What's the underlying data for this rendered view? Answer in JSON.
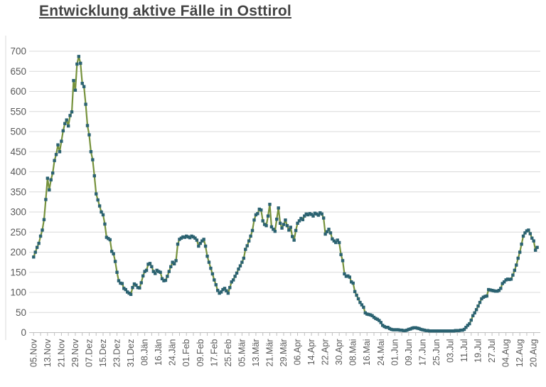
{
  "title": "Entwicklung aktive Fälle in Osttirol",
  "colors": {
    "line": "#76923C",
    "marker": "#2B6271",
    "grid": "#D9D9D9",
    "axis": "#BFBFBF",
    "frame": "#D9D9D9",
    "label": "#595959",
    "title": "#444444"
  },
  "chart_data": {
    "type": "line",
    "title": "Entwicklung aktive Fälle in Osttirol",
    "series_name": "aktive Fälle",
    "xlabel": "",
    "ylabel": "",
    "ylim": [
      0,
      700
    ],
    "y_tick_step": 50,
    "grid": true,
    "legend": false,
    "marker_shape": "square",
    "x_label_every": 8,
    "x_tick_labels": [
      "05.Nov",
      "13.Nov",
      "21.Nov",
      "29.Nov",
      "07.Dez",
      "15.Dez",
      "23.Dez",
      "31.Dez",
      "08.Jän",
      "16.Jän",
      "24.Jän",
      "01.Feb",
      "09.Feb",
      "17.Feb",
      "25.Feb",
      "05.Mär",
      "13.Mär",
      "21.Mär",
      "29.Mär",
      "06.Apr",
      "14.Apr",
      "22.Apr",
      "30.Apr",
      "08.Mai",
      "16.Mai",
      "24.Mai",
      "01.Jun",
      "09.Jun",
      "17.Jun",
      "25.Jun",
      "03.Jul",
      "11.Jul",
      "19.Jul",
      "27.Jul",
      "04.Aug",
      "12.Aug",
      "20.Aug"
    ],
    "values": [
      188,
      200,
      212,
      222,
      240,
      255,
      281,
      331,
      384,
      355,
      380,
      397,
      428,
      443,
      467,
      450,
      476,
      502,
      520,
      529,
      514,
      540,
      549,
      627,
      603,
      668,
      687,
      670,
      620,
      612,
      568,
      515,
      492,
      450,
      430,
      390,
      345,
      330,
      315,
      300,
      293,
      270,
      237,
      234,
      231,
      202,
      196,
      177,
      150,
      129,
      123,
      122,
      110,
      107,
      101,
      98,
      95,
      112,
      121,
      118,
      112,
      111,
      124,
      141,
      152,
      155,
      170,
      172,
      164,
      152,
      147,
      155,
      152,
      150,
      134,
      129,
      130,
      140,
      152,
      164,
      175,
      171,
      179,
      220,
      232,
      235,
      238,
      237,
      240,
      238,
      236,
      240,
      238,
      235,
      230,
      215,
      222,
      228,
      232,
      215,
      190,
      175,
      160,
      146,
      131,
      119,
      105,
      98,
      101,
      107,
      110,
      104,
      98,
      112,
      126,
      131,
      140,
      148,
      158,
      166,
      175,
      185,
      207,
      216,
      228,
      240,
      254,
      280,
      293,
      296,
      307,
      305,
      278,
      269,
      266,
      290,
      319,
      263,
      257,
      252,
      282,
      310,
      272,
      260,
      269,
      280,
      266,
      255,
      262,
      239,
      230,
      254,
      272,
      278,
      284,
      281,
      290,
      295,
      293,
      296,
      294,
      290,
      297,
      295,
      292,
      298,
      295,
      285,
      245,
      251,
      257,
      248,
      233,
      228,
      224,
      230,
      224,
      194,
      179,
      146,
      140,
      141,
      138,
      126,
      123,
      102,
      93,
      84,
      75,
      69,
      63,
      49,
      46,
      45,
      44,
      42,
      38,
      35,
      33,
      30,
      25,
      18,
      15,
      13,
      13,
      10,
      8,
      7,
      7,
      7,
      7,
      6,
      6,
      5,
      5,
      6,
      8,
      9,
      11,
      12,
      12,
      11,
      10,
      8,
      7,
      6,
      5,
      5,
      4,
      4,
      4,
      4,
      4,
      4,
      4,
      4,
      4,
      4,
      4,
      4,
      4,
      4,
      4,
      5,
      5,
      5,
      6,
      6,
      8,
      13,
      18,
      22,
      31,
      42,
      49,
      57,
      66,
      75,
      84,
      88,
      90,
      91,
      107,
      106,
      105,
      104,
      103,
      103,
      105,
      110,
      122,
      126,
      131,
      133,
      132,
      133,
      143,
      155,
      168,
      185,
      200,
      220,
      240,
      248,
      253,
      255,
      246,
      235,
      228,
      205,
      212
    ]
  }
}
